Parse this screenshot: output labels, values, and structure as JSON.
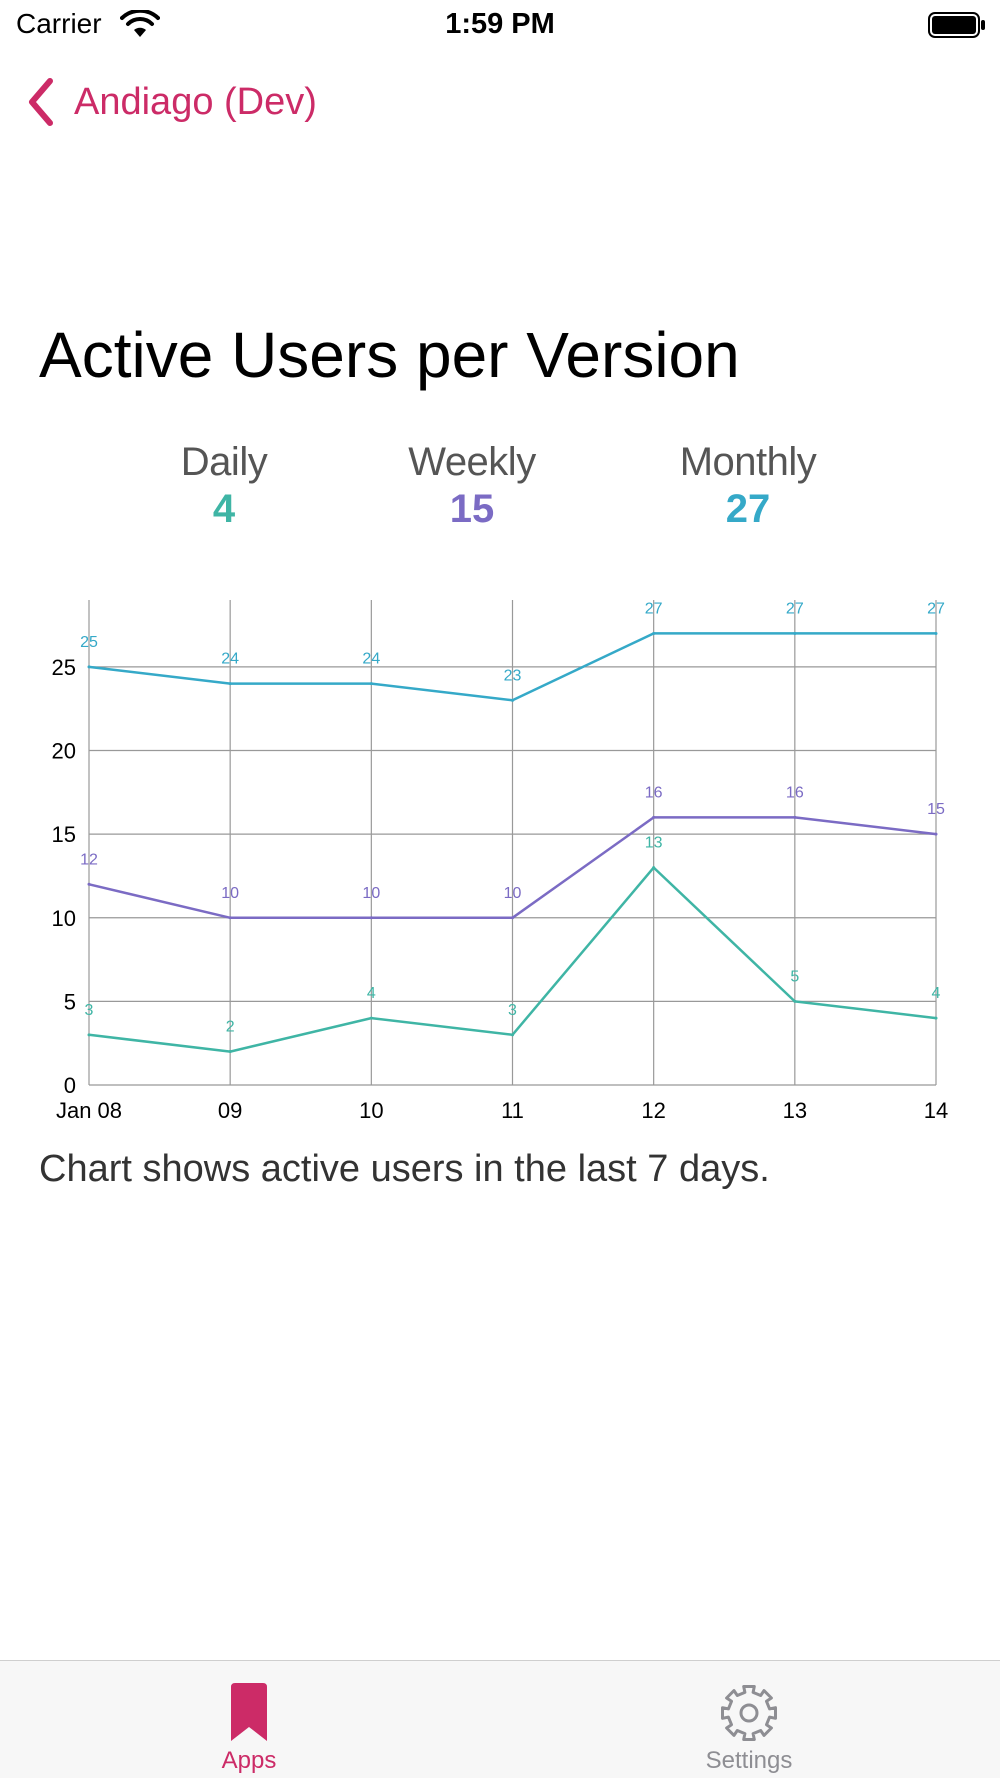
{
  "status_bar": {
    "carrier": "Carrier",
    "time": "1:59 PM",
    "wifi_icon": "wifi-icon",
    "battery_icon": "battery-icon"
  },
  "nav": {
    "back_label": "Andiago (Dev)",
    "back_icon": "chevron-left-icon",
    "accent_color": "#cc2b67"
  },
  "page_title": "Active Users per Version",
  "stats": {
    "daily": {
      "label": "Daily",
      "value": "4",
      "color": "#3fb5a5"
    },
    "weekly": {
      "label": "Weekly",
      "value": "15",
      "color": "#7b6bc4"
    },
    "monthly": {
      "label": "Monthly",
      "value": "27",
      "color": "#35a9c8"
    }
  },
  "chart_data": {
    "type": "line",
    "categories": [
      "Jan 08",
      "09",
      "10",
      "11",
      "12",
      "13",
      "14"
    ],
    "ylim": [
      0,
      29
    ],
    "yticks": [
      0,
      5,
      10,
      15,
      20,
      25
    ],
    "grid": true,
    "series": [
      {
        "color": "#35a9c8",
        "values": [
          25,
          24,
          24,
          23,
          27,
          27,
          27
        ]
      },
      {
        "color": "#7b6bc4",
        "values": [
          12,
          10,
          10,
          10,
          16,
          16,
          15
        ]
      },
      {
        "color": "#3fb5a5",
        "values": [
          3,
          2,
          4,
          3,
          13,
          5,
          4
        ]
      }
    ]
  },
  "caption": "Chart shows active users in the last 7 days.",
  "tab_bar": {
    "tabs": [
      {
        "label": "Apps",
        "icon": "bookmark-icon",
        "active": true,
        "color": "#cc2b67"
      },
      {
        "label": "Settings",
        "icon": "gear-icon",
        "active": false,
        "color": "#8e8e93"
      }
    ]
  }
}
